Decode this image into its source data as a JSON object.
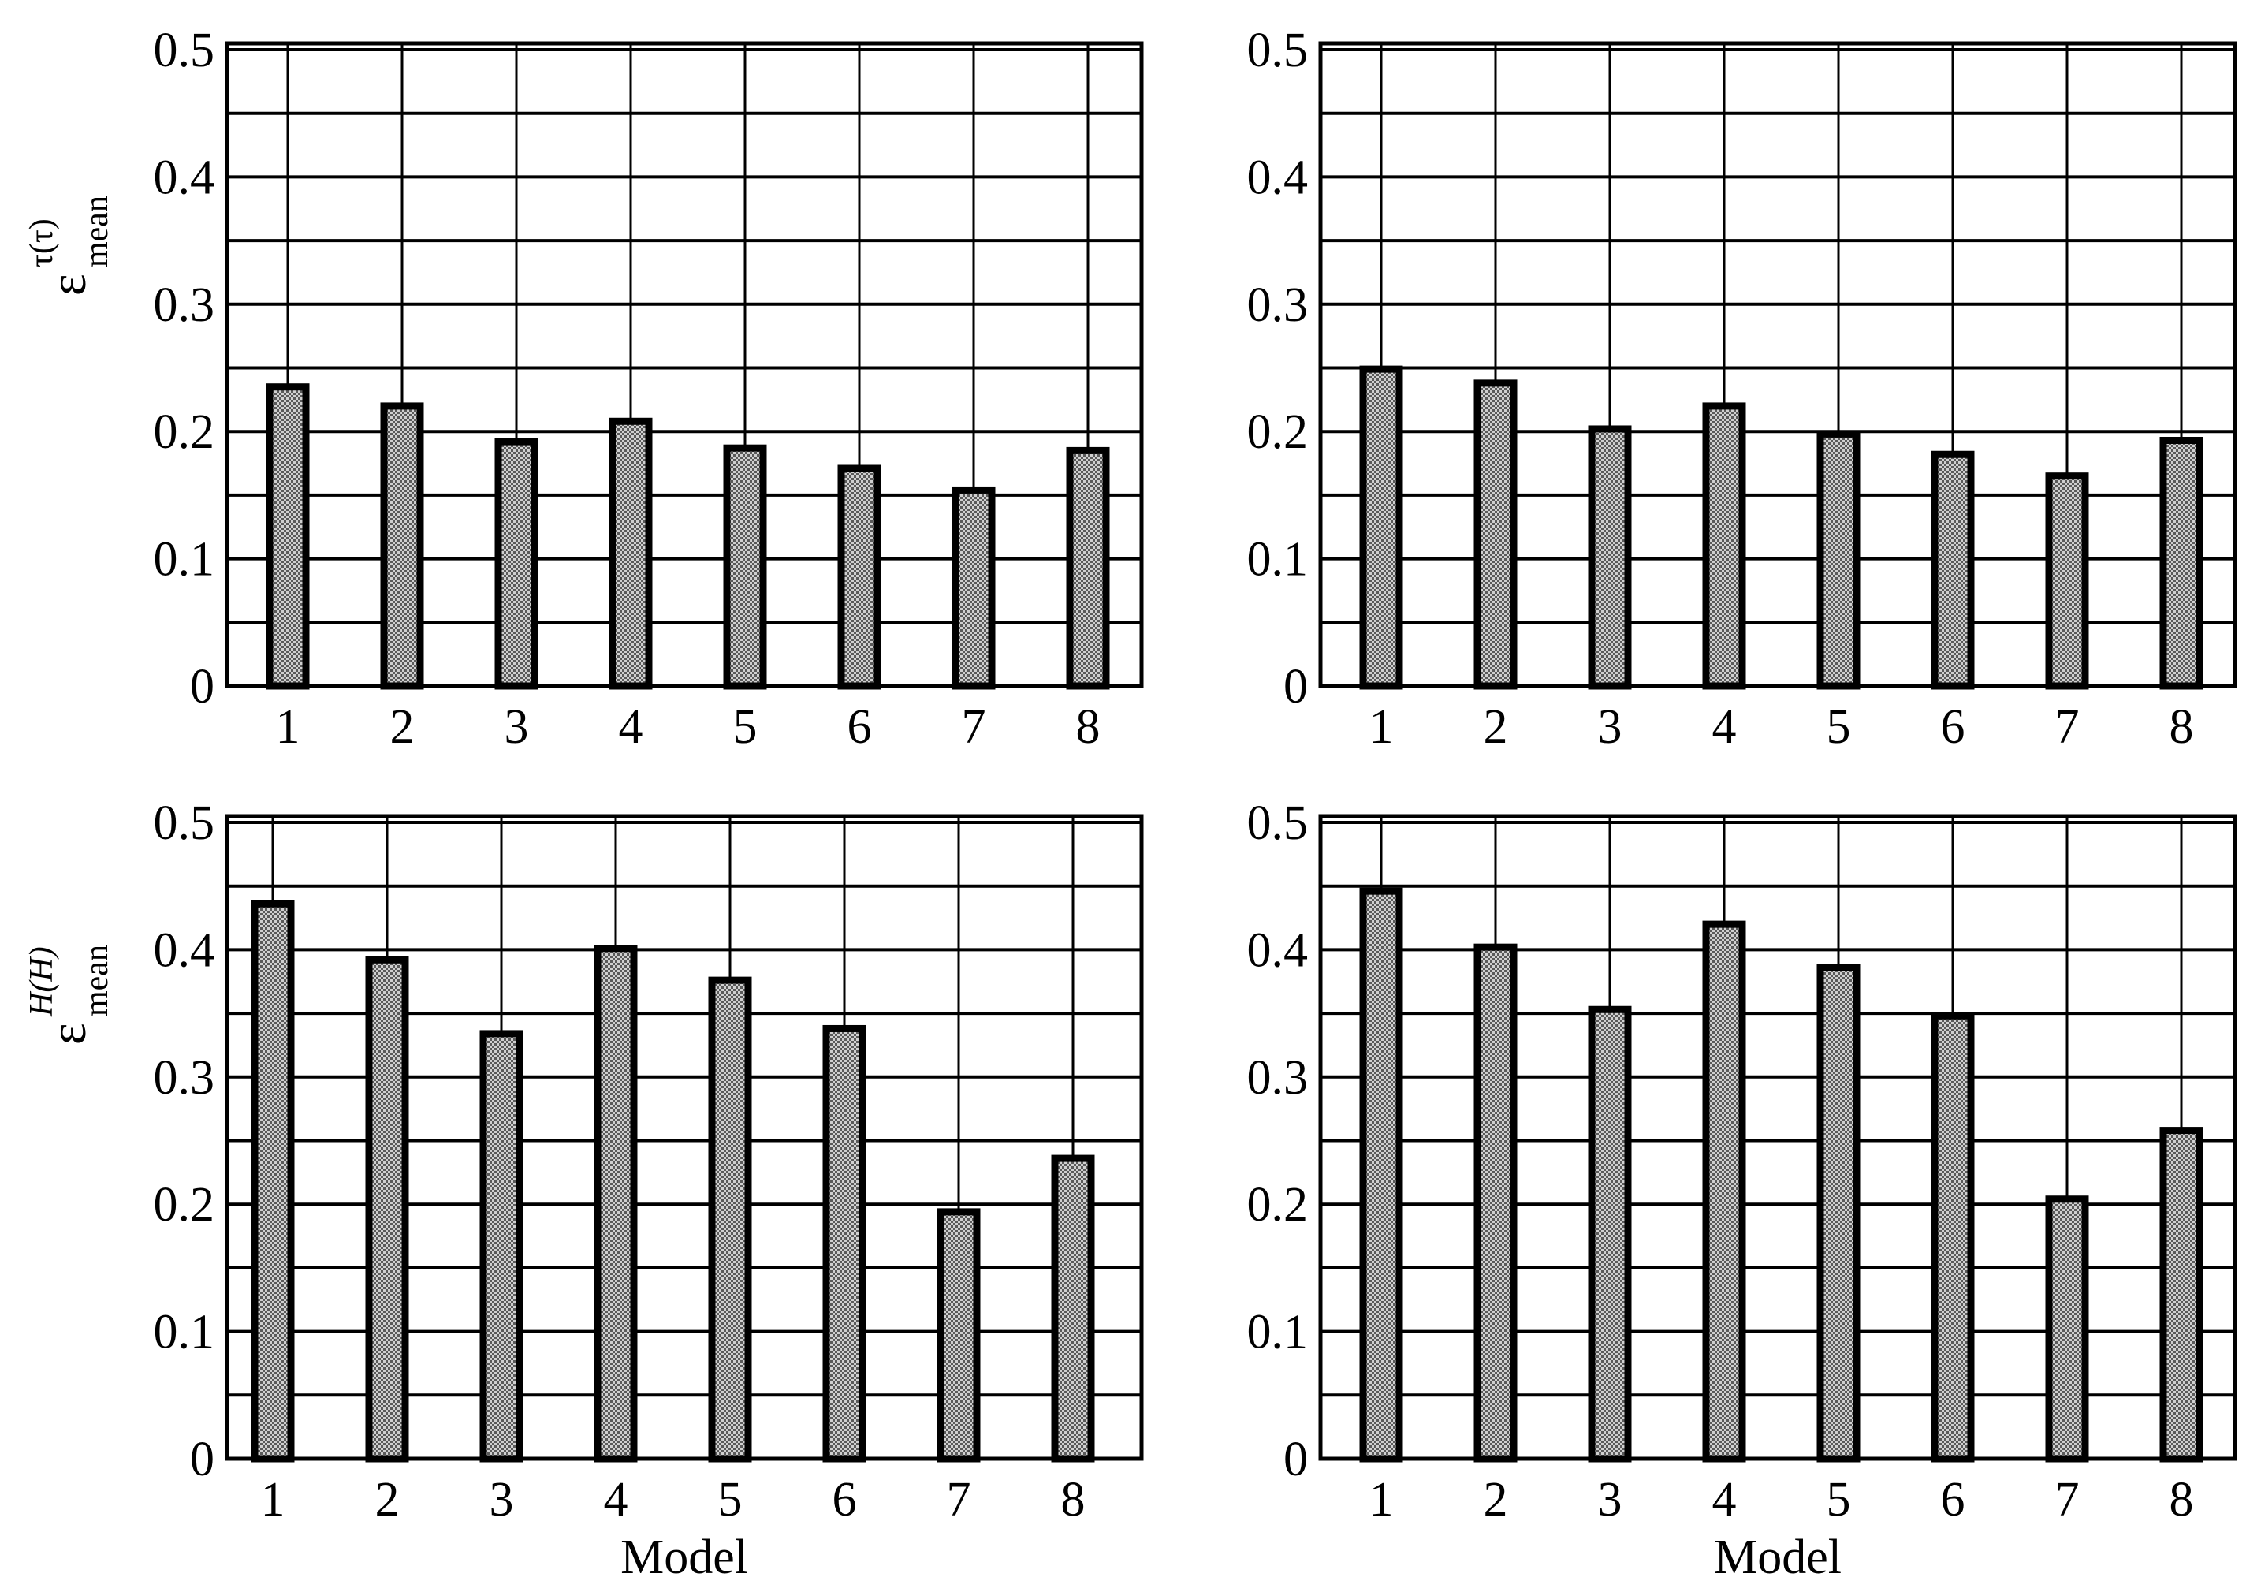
{
  "colors": {
    "bar_fill_light": "#d0d0d0",
    "bar_fill_dark": "#5a5a5a",
    "bar_edge": "#000000",
    "grid": "#000000",
    "background": "#ffffff"
  },
  "chart_data": [
    {
      "type": "bar",
      "categories": [
        "1",
        "2",
        "3",
        "4",
        "5",
        "6",
        "7",
        "8"
      ],
      "values": [
        0.235,
        0.22,
        0.192,
        0.208,
        0.187,
        0.171,
        0.154,
        0.185
      ],
      "yticks": [
        "0",
        "0.1",
        "0.2",
        "0.3",
        "0.4",
        "0.5"
      ],
      "ylim": [
        0,
        0.5
      ],
      "ylabel": {
        "main": "ε",
        "sup": "τ(τ)",
        "sub": "mean"
      },
      "xlabel": "",
      "grid": true
    },
    {
      "type": "bar",
      "categories": [
        "1",
        "2",
        "3",
        "4",
        "5",
        "6",
        "7",
        "8"
      ],
      "values": [
        0.249,
        0.238,
        0.202,
        0.22,
        0.198,
        0.182,
        0.165,
        0.193
      ],
      "yticks": [
        "0",
        "0.1",
        "0.2",
        "0.3",
        "0.4",
        "0.5"
      ],
      "ylim": [
        0,
        0.5
      ],
      "xlabel": "",
      "grid": true
    },
    {
      "type": "bar",
      "categories": [
        "1",
        "2",
        "3",
        "4",
        "5",
        "6",
        "7",
        "8"
      ],
      "values": [
        0.436,
        0.392,
        0.334,
        0.401,
        0.376,
        0.338,
        0.194,
        0.236
      ],
      "yticks": [
        "0",
        "0.1",
        "0.2",
        "0.3",
        "0.4",
        "0.5"
      ],
      "ylim": [
        0,
        0.5
      ],
      "ylabel": {
        "main": "ε",
        "sup": "H(H)",
        "sub": "mean"
      },
      "xlabel": "Model",
      "grid": true
    },
    {
      "type": "bar",
      "categories": [
        "1",
        "2",
        "3",
        "4",
        "5",
        "6",
        "7",
        "8"
      ],
      "values": [
        0.446,
        0.402,
        0.353,
        0.42,
        0.386,
        0.348,
        0.204,
        0.258
      ],
      "yticks": [
        "0",
        "0.1",
        "0.2",
        "0.3",
        "0.4",
        "0.5"
      ],
      "ylim": [
        0,
        0.5
      ],
      "xlabel": "Model",
      "grid": true
    }
  ]
}
